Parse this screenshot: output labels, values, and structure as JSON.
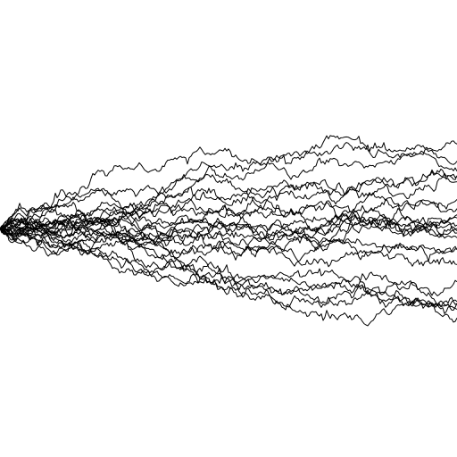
{
  "figure": {
    "kind": "random-walk-paths",
    "path_count": 24,
    "stroke_color": "#000000",
    "background_color": "#ffffff",
    "origin": "left-center",
    "spread": "fan-out-to-right",
    "axes_visible": false,
    "grid": false,
    "legend": false
  }
}
